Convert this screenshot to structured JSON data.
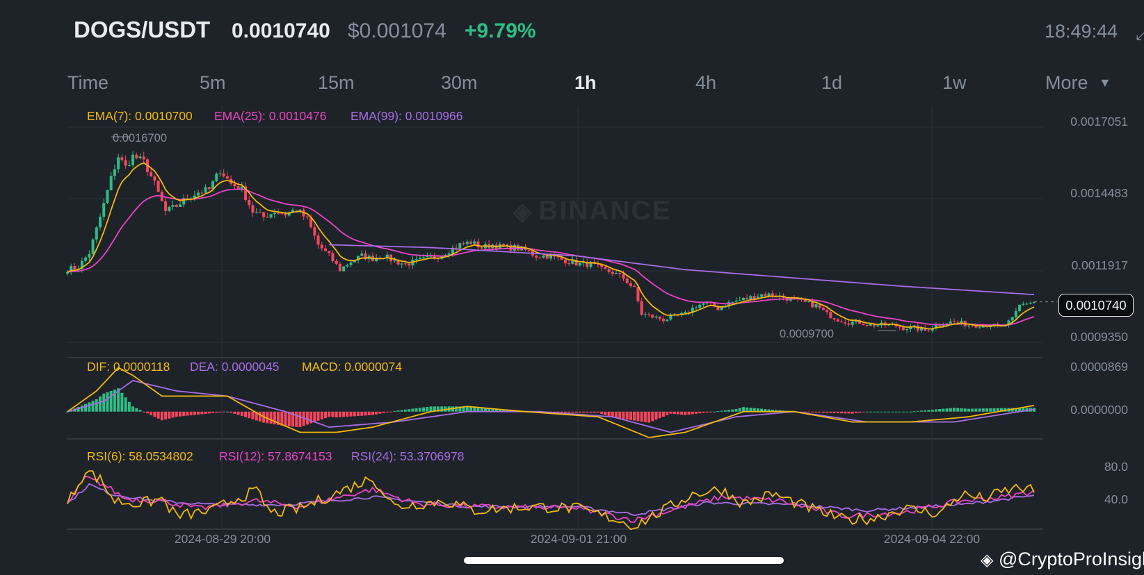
{
  "header": {
    "pair": "DOGS/USDT",
    "last_price": "0.0010740",
    "usd_price": "$0.001074",
    "change": "+9.79%",
    "time": "18:49:44",
    "expand_icon": "expand-arrows-icon"
  },
  "timeframes": [
    {
      "label": "Time"
    },
    {
      "label": "5m"
    },
    {
      "label": "15m"
    },
    {
      "label": "30m"
    },
    {
      "label": "1h",
      "active": true
    },
    {
      "label": "4h"
    },
    {
      "label": "1d"
    },
    {
      "label": "1w"
    },
    {
      "label": "More",
      "icon": "caret-down-icon"
    }
  ],
  "colors": {
    "up": "#2ebd85",
    "down": "#f6465d",
    "ema7": "#f0b90b",
    "ema25": "#e845c2",
    "ema99": "#a66de3",
    "grid": "#2b3139",
    "text_muted": "#848e9c",
    "background": "#1e2329"
  },
  "price_panel": {
    "legend": {
      "ema7": "EMA(7): 0.0010700",
      "ema25": "EMA(25): 0.0010476",
      "ema99": "EMA(99): 0.0010966"
    },
    "axis_labels": [
      "0.0017051",
      "0.0014483",
      "0.0011917",
      "0.0009350"
    ],
    "high_tag": "0.0016700",
    "low_tag": "0.0009700",
    "current_price": "0.0010740",
    "watermark": "BINANCE"
  },
  "macd_panel": {
    "legend": {
      "dif": "DIF: 0.0000118",
      "dea": "DEA: 0.0000045",
      "macd": "MACD: 0.0000074"
    },
    "axis_labels": [
      "0.0000869",
      "0.0000000"
    ]
  },
  "rsi_panel": {
    "legend": {
      "rsi6": "RSI(6): 58.0534802",
      "rsi12": "RSI(12): 57.8674153",
      "rsi24": "RSI(24): 53.3706978"
    },
    "axis_labels": [
      "80.0",
      "40.0"
    ]
  },
  "x_axis": {
    "dates": [
      "2024-08-29 20:00",
      "2024-09-01 21:00",
      "2024-09-04 22:00"
    ]
  },
  "footer": {
    "credit": "@CryptoProInsight",
    "credit_icon": "binance-diamond-icon"
  },
  "chart_data": {
    "type": "candlestick",
    "interval": "1h",
    "y_range_price": [
      0.000935,
      0.0017051
    ],
    "price_anchors": [
      [
        0,
        0.001192
      ],
      [
        3,
        0.0012
      ],
      [
        6,
        0.00125
      ],
      [
        9,
        0.00138
      ],
      [
        12,
        0.00152
      ],
      [
        14,
        0.0016
      ],
      [
        16,
        0.00156
      ],
      [
        18,
        0.0016
      ],
      [
        21,
        0.00158
      ],
      [
        24,
        0.0015
      ],
      [
        27,
        0.0014
      ],
      [
        30,
        0.00142
      ],
      [
        33,
        0.00145
      ],
      [
        36,
        0.00147
      ],
      [
        39,
        0.00148
      ],
      [
        42,
        0.00155
      ],
      [
        45,
        0.0015
      ],
      [
        48,
        0.00148
      ],
      [
        51,
        0.0014
      ],
      [
        54,
        0.00138
      ],
      [
        57,
        0.0014
      ],
      [
        60,
        0.00139
      ],
      [
        63,
        0.00141
      ],
      [
        66,
        0.00137
      ],
      [
        69,
        0.00128
      ],
      [
        72,
        0.00124
      ],
      [
        75,
        0.00119
      ],
      [
        78,
        0.00122
      ],
      [
        81,
        0.00124
      ],
      [
        84,
        0.00123
      ],
      [
        87,
        0.00124
      ],
      [
        90,
        0.00122
      ],
      [
        93,
        0.00121
      ],
      [
        96,
        0.00122
      ],
      [
        99,
        0.00123
      ],
      [
        102,
        0.00124
      ],
      [
        105,
        0.00126
      ],
      [
        108,
        0.00128
      ],
      [
        111,
        0.00129
      ],
      [
        114,
        0.00127
      ],
      [
        117,
        0.00128
      ],
      [
        120,
        0.00127
      ],
      [
        123,
        0.00127
      ],
      [
        126,
        0.00126
      ],
      [
        129,
        0.00124
      ],
      [
        132,
        0.00124
      ],
      [
        135,
        0.00123
      ],
      [
        138,
        0.00122
      ],
      [
        141,
        0.00121
      ],
      [
        144,
        0.00121
      ],
      [
        147,
        0.00119
      ],
      [
        150,
        0.00118
      ],
      [
        153,
        0.00116
      ],
      [
        156,
        0.00112
      ],
      [
        158,
        0.00103
      ],
      [
        161,
        0.00102
      ],
      [
        164,
        0.00101
      ],
      [
        167,
        0.00102
      ],
      [
        170,
        0.00103
      ],
      [
        173,
        0.00106
      ],
      [
        176,
        0.00107
      ],
      [
        179,
        0.00105
      ],
      [
        182,
        0.00107
      ],
      [
        185,
        0.00108
      ],
      [
        188,
        0.00109
      ],
      [
        191,
        0.0011
      ],
      [
        194,
        0.0011
      ],
      [
        197,
        0.00109
      ],
      [
        200,
        0.00108
      ],
      [
        203,
        0.00107
      ],
      [
        206,
        0.00106
      ],
      [
        209,
        0.00103
      ],
      [
        212,
        0.00101
      ],
      [
        215,
        0.001
      ],
      [
        218,
        0.001
      ],
      [
        221,
        0.00099
      ],
      [
        224,
        0.00099
      ],
      [
        227,
        0.00099
      ],
      [
        230,
        0.00098
      ],
      [
        233,
        0.00098
      ],
      [
        236,
        0.00097
      ],
      [
        239,
        0.00099
      ],
      [
        242,
        0.001
      ],
      [
        245,
        0.001
      ],
      [
        248,
        0.00099
      ],
      [
        251,
        0.00099
      ],
      [
        254,
        0.00099
      ],
      [
        257,
        0.00098
      ],
      [
        260,
        0.00101
      ],
      [
        262,
        0.00106
      ],
      [
        264,
        0.00107
      ],
      [
        266,
        0.001074
      ]
    ],
    "ema99_anchors": [
      [
        72,
        0.00128
      ],
      [
        100,
        0.00127
      ],
      [
        140,
        0.00124
      ],
      [
        170,
        0.00119
      ],
      [
        200,
        0.00116
      ],
      [
        230,
        0.00113
      ],
      [
        266,
        0.0011
      ]
    ],
    "macd_range": [
      -5e-05,
      8.69e-05
    ],
    "macd_dif": [
      [
        0,
        0.0
      ],
      [
        8,
        4e-05
      ],
      [
        14,
        8.5e-05
      ],
      [
        18,
        7e-05
      ],
      [
        26,
        3e-05
      ],
      [
        36,
        3e-05
      ],
      [
        44,
        3e-05
      ],
      [
        54,
        -1e-05
      ],
      [
        64,
        -4e-05
      ],
      [
        74,
        -4e-05
      ],
      [
        84,
        -3e-05
      ],
      [
        100,
        0.0
      ],
      [
        110,
        1e-05
      ],
      [
        126,
        0.0
      ],
      [
        146,
        -1e-05
      ],
      [
        160,
        -5e-05
      ],
      [
        170,
        -4e-05
      ],
      [
        186,
        0.0
      ],
      [
        200,
        0.0
      ],
      [
        216,
        -2e-05
      ],
      [
        232,
        -2e-05
      ],
      [
        248,
        -1e-05
      ],
      [
        256,
        0.0
      ],
      [
        266,
        1.18e-05
      ]
    ],
    "macd_dea": [
      [
        0,
        0.0
      ],
      [
        10,
        2e-05
      ],
      [
        18,
        6e-05
      ],
      [
        30,
        4e-05
      ],
      [
        44,
        3e-05
      ],
      [
        60,
        0.0
      ],
      [
        72,
        -3e-05
      ],
      [
        90,
        -2e-05
      ],
      [
        110,
        0.0
      ],
      [
        130,
        0.0
      ],
      [
        150,
        -1e-05
      ],
      [
        166,
        -4e-05
      ],
      [
        184,
        -1e-05
      ],
      [
        200,
        0.0
      ],
      [
        220,
        -2e-05
      ],
      [
        244,
        -2e-05
      ],
      [
        266,
        4.5e-06
      ]
    ],
    "rsi_range": [
      20,
      95
    ],
    "rsi6": [
      [
        0,
        45
      ],
      [
        5,
        80
      ],
      [
        9,
        70
      ],
      [
        13,
        48
      ],
      [
        20,
        45
      ],
      [
        26,
        50
      ],
      [
        30,
        32
      ],
      [
        40,
        38
      ],
      [
        46,
        50
      ],
      [
        52,
        58
      ],
      [
        56,
        35
      ],
      [
        64,
        40
      ],
      [
        84,
        72
      ],
      [
        90,
        42
      ],
      [
        104,
        48
      ],
      [
        112,
        38
      ],
      [
        128,
        42
      ],
      [
        140,
        40
      ],
      [
        150,
        30
      ],
      [
        156,
        22
      ],
      [
        164,
        38
      ],
      [
        172,
        55
      ],
      [
        180,
        60
      ],
      [
        186,
        45
      ],
      [
        194,
        55
      ],
      [
        206,
        38
      ],
      [
        214,
        28
      ],
      [
        222,
        30
      ],
      [
        230,
        40
      ],
      [
        240,
        35
      ],
      [
        246,
        55
      ],
      [
        252,
        50
      ],
      [
        258,
        58
      ],
      [
        262,
        62
      ],
      [
        266,
        58
      ]
    ],
    "rsi12": [
      [
        0,
        45
      ],
      [
        5,
        72
      ],
      [
        10,
        65
      ],
      [
        16,
        50
      ],
      [
        26,
        48
      ],
      [
        36,
        40
      ],
      [
        52,
        48
      ],
      [
        64,
        42
      ],
      [
        84,
        60
      ],
      [
        96,
        45
      ],
      [
        112,
        42
      ],
      [
        140,
        40
      ],
      [
        156,
        28
      ],
      [
        168,
        40
      ],
      [
        180,
        52
      ],
      [
        196,
        48
      ],
      [
        214,
        32
      ],
      [
        230,
        36
      ],
      [
        246,
        48
      ],
      [
        258,
        52
      ],
      [
        266,
        57.87
      ]
    ],
    "rsi24": [
      [
        0,
        45
      ],
      [
        6,
        65
      ],
      [
        12,
        55
      ],
      [
        24,
        48
      ],
      [
        40,
        44
      ],
      [
        60,
        44
      ],
      [
        84,
        52
      ],
      [
        110,
        42
      ],
      [
        140,
        42
      ],
      [
        156,
        34
      ],
      [
        176,
        46
      ],
      [
        200,
        44
      ],
      [
        220,
        38
      ],
      [
        246,
        44
      ],
      [
        266,
        53.37
      ]
    ]
  }
}
